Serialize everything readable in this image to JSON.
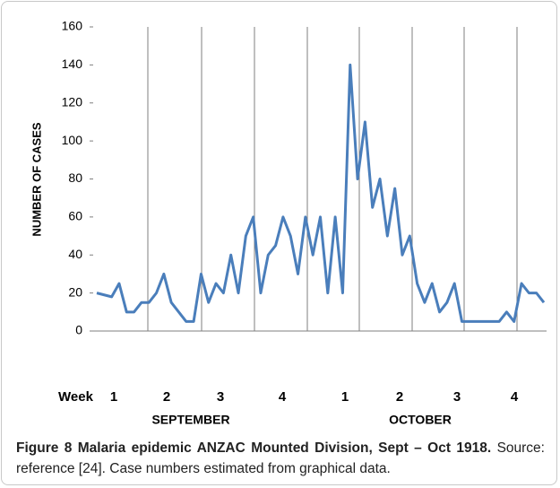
{
  "chart_data": {
    "type": "line",
    "y_label": "NUMBER OF CASES",
    "x_prefix": "Week",
    "weeks": [
      "1",
      "2",
      "3",
      "4",
      "1",
      "2",
      "3",
      "4"
    ],
    "months": [
      "SEPTEMBER",
      "OCTOBER"
    ],
    "series": [
      {
        "name": "Cases",
        "color": "#4a7ebb",
        "values": [
          20,
          19,
          18,
          25,
          10,
          10,
          15,
          15,
          20,
          30,
          15,
          10,
          5,
          5,
          30,
          15,
          25,
          20,
          40,
          20,
          50,
          60,
          20,
          40,
          45,
          60,
          50,
          30,
          60,
          40,
          60,
          20,
          60,
          20,
          140,
          80,
          110,
          65,
          80,
          50,
          75,
          40,
          50,
          25,
          15,
          25,
          10,
          15,
          25,
          5,
          5,
          5,
          5,
          5,
          5,
          10,
          5,
          25,
          20,
          20,
          15
        ]
      }
    ],
    "ylim": [
      0,
      160
    ],
    "yticks": [
      0,
      20,
      40,
      60,
      80,
      100,
      120,
      140,
      160
    ]
  },
  "caption": {
    "label": "Figure 8",
    "title": "Malaria epidemic ANZAC Mounted Division, Sept – Oct 1918.",
    "text": "Source: reference [24]. Case numbers estimated from graphical data."
  }
}
